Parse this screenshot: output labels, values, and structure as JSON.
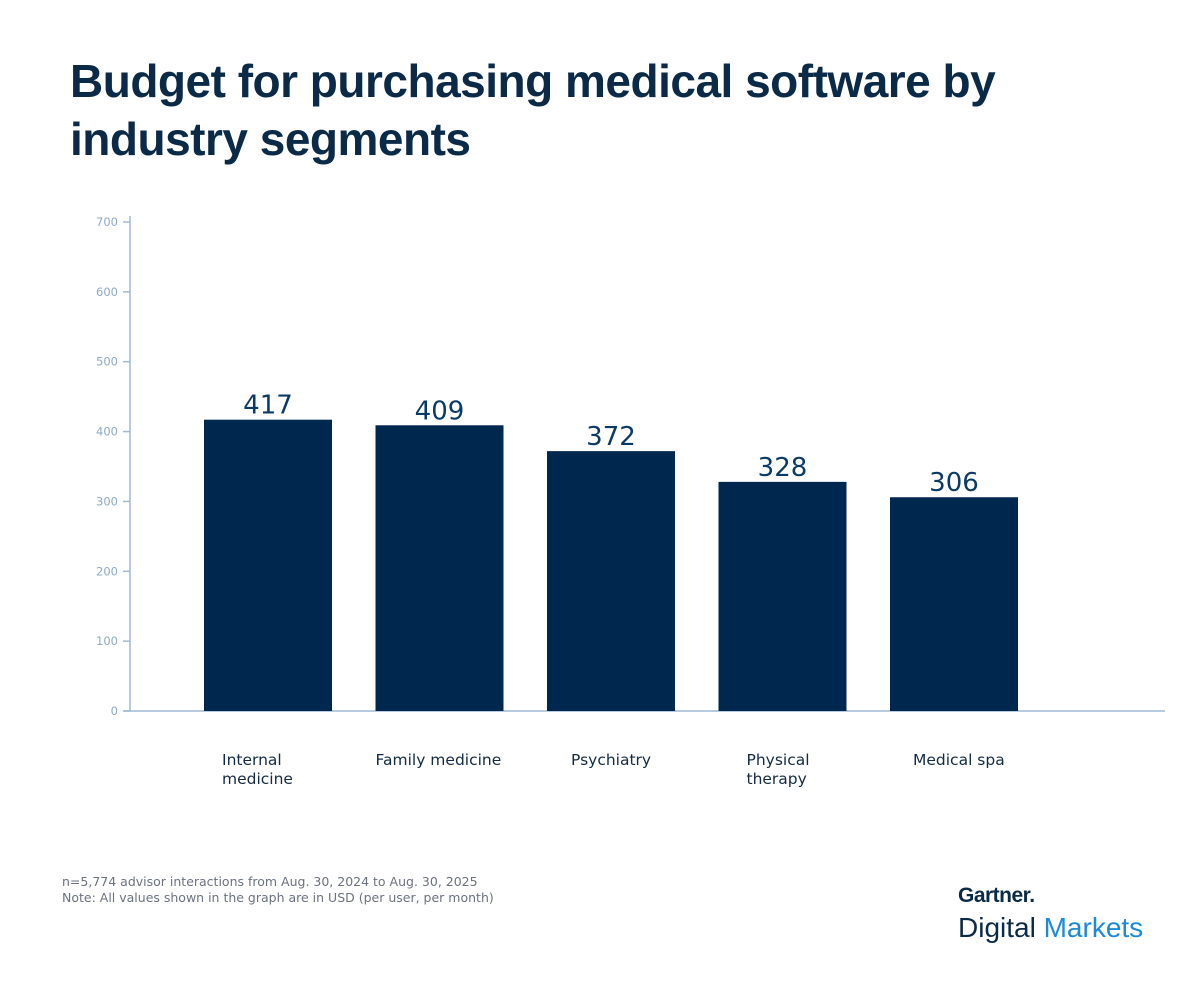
{
  "title": "Budget for purchasing medical software by industry segments",
  "chart_data": {
    "type": "bar",
    "categories": [
      "Internal\nmedicine",
      "Family medicine",
      "Psychiatry",
      "Physical\ntherapy",
      "Medical spa"
    ],
    "values": [
      417,
      409,
      372,
      328,
      306
    ],
    "xlabel": "",
    "ylabel": "",
    "ylim": [
      0,
      700
    ],
    "yticks": [
      0,
      100,
      200,
      300,
      400,
      500,
      600,
      700
    ],
    "grid": false,
    "bar_color": "#00284f",
    "axis_color": "#9fbad6"
  },
  "footnotes": {
    "sample": "n=5,774 advisor interactions from Aug. 30, 2024 to Aug. 30, 2025",
    "note": "Note: All values shown in the graph are in USD (per user, per month)"
  },
  "brand": {
    "top": "Gartner.",
    "digital": "Digital",
    "markets": "Markets"
  }
}
